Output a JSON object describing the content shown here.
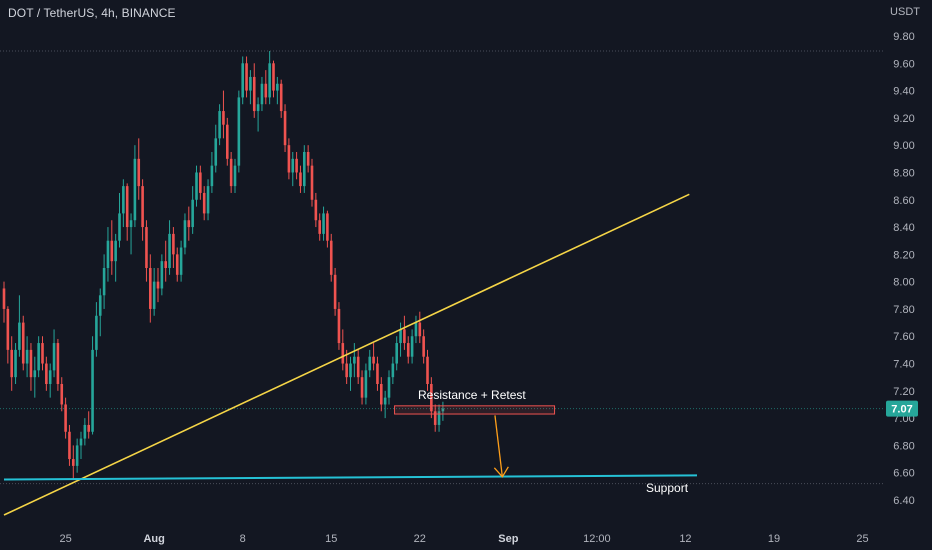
{
  "header": {
    "title": "DOT / TetherUS, 4h, BINANCE",
    "unit": "USDT"
  },
  "colors": {
    "background": "#131722",
    "up": "#26a69a",
    "down": "#ef5350",
    "trendline": "#f5d547",
    "support": "#25c2d6",
    "box": "#ef5350",
    "arrow": "#ff9f1a",
    "dotted": "#3a3e4a"
  },
  "annotations": {
    "resistance_label": "Resistance + Retest",
    "support_label": "Support",
    "current_price": "7.07"
  },
  "chart_data": {
    "type": "candlestick",
    "title": "DOT / TetherUS, 4h, BINANCE",
    "ylabel": "USDT",
    "ylim": [
      6.28,
      10.0
    ],
    "yticks": [
      "6.40",
      "6.60",
      "6.80",
      "7.00",
      "7.20",
      "7.40",
      "7.60",
      "7.80",
      "8.00",
      "8.20",
      "8.40",
      "8.60",
      "8.80",
      "9.00",
      "9.20",
      "9.40",
      "9.60",
      "9.80"
    ],
    "xticks": [
      {
        "label": "25",
        "bar": 16
      },
      {
        "label": "Aug",
        "bar": 39
      },
      {
        "label": "8",
        "bar": 62
      },
      {
        "label": "15",
        "bar": 85
      },
      {
        "label": "22",
        "bar": 108
      },
      {
        "label": "Sep",
        "bar": 131
      },
      {
        "label": "12:00",
        "bar": 154
      },
      {
        "label": "12",
        "bar": 177
      },
      {
        "label": "19",
        "bar": 200
      },
      {
        "label": "25",
        "bar": 223
      }
    ],
    "trend_line": {
      "from": {
        "bar": 0,
        "price": 6.29
      },
      "to": {
        "bar": 178,
        "price": 8.64
      }
    },
    "support_line": {
      "from": {
        "bar": 0,
        "price": 6.55
      },
      "to": {
        "bar": 180,
        "price": 6.58
      }
    },
    "resistance_zone": {
      "bar_from": 103,
      "bar_to": 143,
      "price_low": 7.03,
      "price_high": 7.09
    },
    "projection_arrow": {
      "from": {
        "bar": 127,
        "price": 7.02
      },
      "to": {
        "bar": 131,
        "price": 6.57
      }
    },
    "high_marker": 9.69,
    "low_marker": 6.52,
    "last_price": 7.07,
    "candles": [
      [
        7.95,
        8.0,
        7.7,
        7.8
      ],
      [
        7.8,
        7.82,
        7.4,
        7.5
      ],
      [
        7.5,
        7.6,
        7.2,
        7.3
      ],
      [
        7.3,
        7.55,
        7.25,
        7.5
      ],
      [
        7.5,
        7.9,
        7.45,
        7.7
      ],
      [
        7.7,
        7.75,
        7.35,
        7.4
      ],
      [
        7.4,
        7.6,
        7.3,
        7.5
      ],
      [
        7.5,
        7.55,
        7.2,
        7.3
      ],
      [
        7.3,
        7.45,
        7.15,
        7.35
      ],
      [
        7.35,
        7.6,
        7.3,
        7.55
      ],
      [
        7.55,
        7.6,
        7.35,
        7.4
      ],
      [
        7.4,
        7.45,
        7.2,
        7.25
      ],
      [
        7.25,
        7.4,
        7.15,
        7.35
      ],
      [
        7.35,
        7.65,
        7.3,
        7.55
      ],
      [
        7.55,
        7.58,
        7.2,
        7.25
      ],
      [
        7.25,
        7.3,
        7.05,
        7.1
      ],
      [
        7.1,
        7.15,
        6.85,
        6.9
      ],
      [
        6.9,
        6.95,
        6.65,
        6.7
      ],
      [
        6.7,
        6.8,
        6.55,
        6.65
      ],
      [
        6.65,
        6.85,
        6.6,
        6.8
      ],
      [
        6.8,
        6.9,
        6.7,
        6.85
      ],
      [
        6.85,
        7.0,
        6.8,
        6.95
      ],
      [
        6.95,
        7.05,
        6.85,
        6.9
      ],
      [
        6.9,
        7.6,
        6.88,
        7.5
      ],
      [
        7.5,
        7.85,
        7.45,
        7.75
      ],
      [
        7.75,
        7.95,
        7.6,
        7.9
      ],
      [
        7.9,
        8.2,
        7.8,
        8.1
      ],
      [
        8.1,
        8.4,
        8.0,
        8.3
      ],
      [
        8.3,
        8.45,
        8.05,
        8.15
      ],
      [
        8.15,
        8.35,
        8.0,
        8.3
      ],
      [
        8.3,
        8.65,
        8.25,
        8.5
      ],
      [
        8.5,
        8.75,
        8.4,
        8.7
      ],
      [
        8.7,
        8.72,
        8.3,
        8.4
      ],
      [
        8.4,
        8.5,
        8.2,
        8.45
      ],
      [
        8.45,
        9.0,
        8.4,
        8.9
      ],
      [
        8.9,
        9.05,
        8.6,
        8.7
      ],
      [
        8.7,
        8.75,
        8.3,
        8.4
      ],
      [
        8.4,
        8.45,
        8.0,
        8.1
      ],
      [
        8.1,
        8.2,
        7.7,
        7.8
      ],
      [
        7.8,
        8.1,
        7.75,
        8.0
      ],
      [
        8.0,
        8.1,
        7.85,
        7.95
      ],
      [
        7.95,
        8.2,
        7.9,
        8.15
      ],
      [
        8.15,
        8.3,
        8.0,
        8.1
      ],
      [
        8.1,
        8.45,
        8.05,
        8.35
      ],
      [
        8.35,
        8.4,
        8.1,
        8.2
      ],
      [
        8.2,
        8.25,
        8.0,
        8.05
      ],
      [
        8.05,
        8.3,
        8.0,
        8.25
      ],
      [
        8.25,
        8.5,
        8.2,
        8.45
      ],
      [
        8.45,
        8.55,
        8.3,
        8.4
      ],
      [
        8.4,
        8.7,
        8.35,
        8.6
      ],
      [
        8.6,
        8.85,
        8.55,
        8.8
      ],
      [
        8.8,
        8.85,
        8.6,
        8.65
      ],
      [
        8.65,
        8.7,
        8.45,
        8.5
      ],
      [
        8.5,
        8.75,
        8.45,
        8.7
      ],
      [
        8.7,
        8.95,
        8.65,
        8.85
      ],
      [
        8.85,
        9.15,
        8.8,
        9.05
      ],
      [
        9.05,
        9.3,
        9.0,
        9.25
      ],
      [
        9.25,
        9.4,
        9.05,
        9.15
      ],
      [
        9.15,
        9.2,
        8.85,
        8.9
      ],
      [
        8.9,
        8.95,
        8.65,
        8.7
      ],
      [
        8.7,
        8.9,
        8.65,
        8.85
      ],
      [
        8.85,
        9.4,
        8.8,
        9.35
      ],
      [
        9.35,
        9.65,
        9.3,
        9.6
      ],
      [
        9.6,
        9.65,
        9.35,
        9.4
      ],
      [
        9.4,
        9.55,
        9.3,
        9.5
      ],
      [
        9.5,
        9.6,
        9.2,
        9.25
      ],
      [
        9.25,
        9.35,
        9.1,
        9.3
      ],
      [
        9.3,
        9.5,
        9.25,
        9.45
      ],
      [
        9.45,
        9.55,
        9.3,
        9.35
      ],
      [
        9.35,
        9.69,
        9.3,
        9.6
      ],
      [
        9.6,
        9.62,
        9.35,
        9.4
      ],
      [
        9.4,
        9.5,
        9.3,
        9.45
      ],
      [
        9.45,
        9.48,
        9.2,
        9.25
      ],
      [
        9.25,
        9.3,
        8.95,
        9.0
      ],
      [
        9.0,
        9.05,
        8.75,
        8.8
      ],
      [
        8.8,
        8.95,
        8.7,
        8.9
      ],
      [
        8.9,
        8.95,
        8.75,
        8.8
      ],
      [
        8.8,
        8.85,
        8.65,
        8.7
      ],
      [
        8.7,
        9.0,
        8.65,
        8.95
      ],
      [
        8.95,
        9.0,
        8.8,
        8.85
      ],
      [
        8.85,
        8.9,
        8.55,
        8.6
      ],
      [
        8.6,
        8.65,
        8.4,
        8.45
      ],
      [
        8.45,
        8.5,
        8.3,
        8.35
      ],
      [
        8.35,
        8.55,
        8.3,
        8.5
      ],
      [
        8.5,
        8.52,
        8.25,
        8.3
      ],
      [
        8.3,
        8.35,
        8.0,
        8.05
      ],
      [
        8.05,
        8.1,
        7.75,
        7.8
      ],
      [
        7.8,
        7.85,
        7.5,
        7.55
      ],
      [
        7.55,
        7.65,
        7.35,
        7.4
      ],
      [
        7.4,
        7.5,
        7.25,
        7.3
      ],
      [
        7.3,
        7.45,
        7.2,
        7.4
      ],
      [
        7.4,
        7.55,
        7.3,
        7.45
      ],
      [
        7.45,
        7.5,
        7.25,
        7.3
      ],
      [
        7.3,
        7.35,
        7.1,
        7.15
      ],
      [
        7.15,
        7.4,
        7.1,
        7.35
      ],
      [
        7.35,
        7.5,
        7.3,
        7.45
      ],
      [
        7.45,
        7.55,
        7.35,
        7.4
      ],
      [
        7.4,
        7.45,
        7.2,
        7.25
      ],
      [
        7.25,
        7.3,
        7.05,
        7.1
      ],
      [
        7.1,
        7.2,
        7.0,
        7.15
      ],
      [
        7.15,
        7.35,
        7.1,
        7.3
      ],
      [
        7.3,
        7.45,
        7.25,
        7.4
      ],
      [
        7.4,
        7.6,
        7.35,
        7.55
      ],
      [
        7.55,
        7.7,
        7.45,
        7.65
      ],
      [
        7.65,
        7.75,
        7.5,
        7.55
      ],
      [
        7.55,
        7.6,
        7.4,
        7.45
      ],
      [
        7.45,
        7.65,
        7.4,
        7.6
      ],
      [
        7.6,
        7.75,
        7.55,
        7.7
      ],
      [
        7.7,
        7.78,
        7.55,
        7.6
      ],
      [
        7.6,
        7.65,
        7.4,
        7.45
      ],
      [
        7.45,
        7.5,
        7.2,
        7.25
      ],
      [
        7.25,
        7.3,
        7.0,
        7.05
      ],
      [
        7.05,
        7.1,
        6.9,
        6.95
      ],
      [
        6.95,
        7.1,
        6.9,
        7.05
      ],
      [
        7.05,
        7.12,
        6.98,
        7.07
      ]
    ]
  }
}
